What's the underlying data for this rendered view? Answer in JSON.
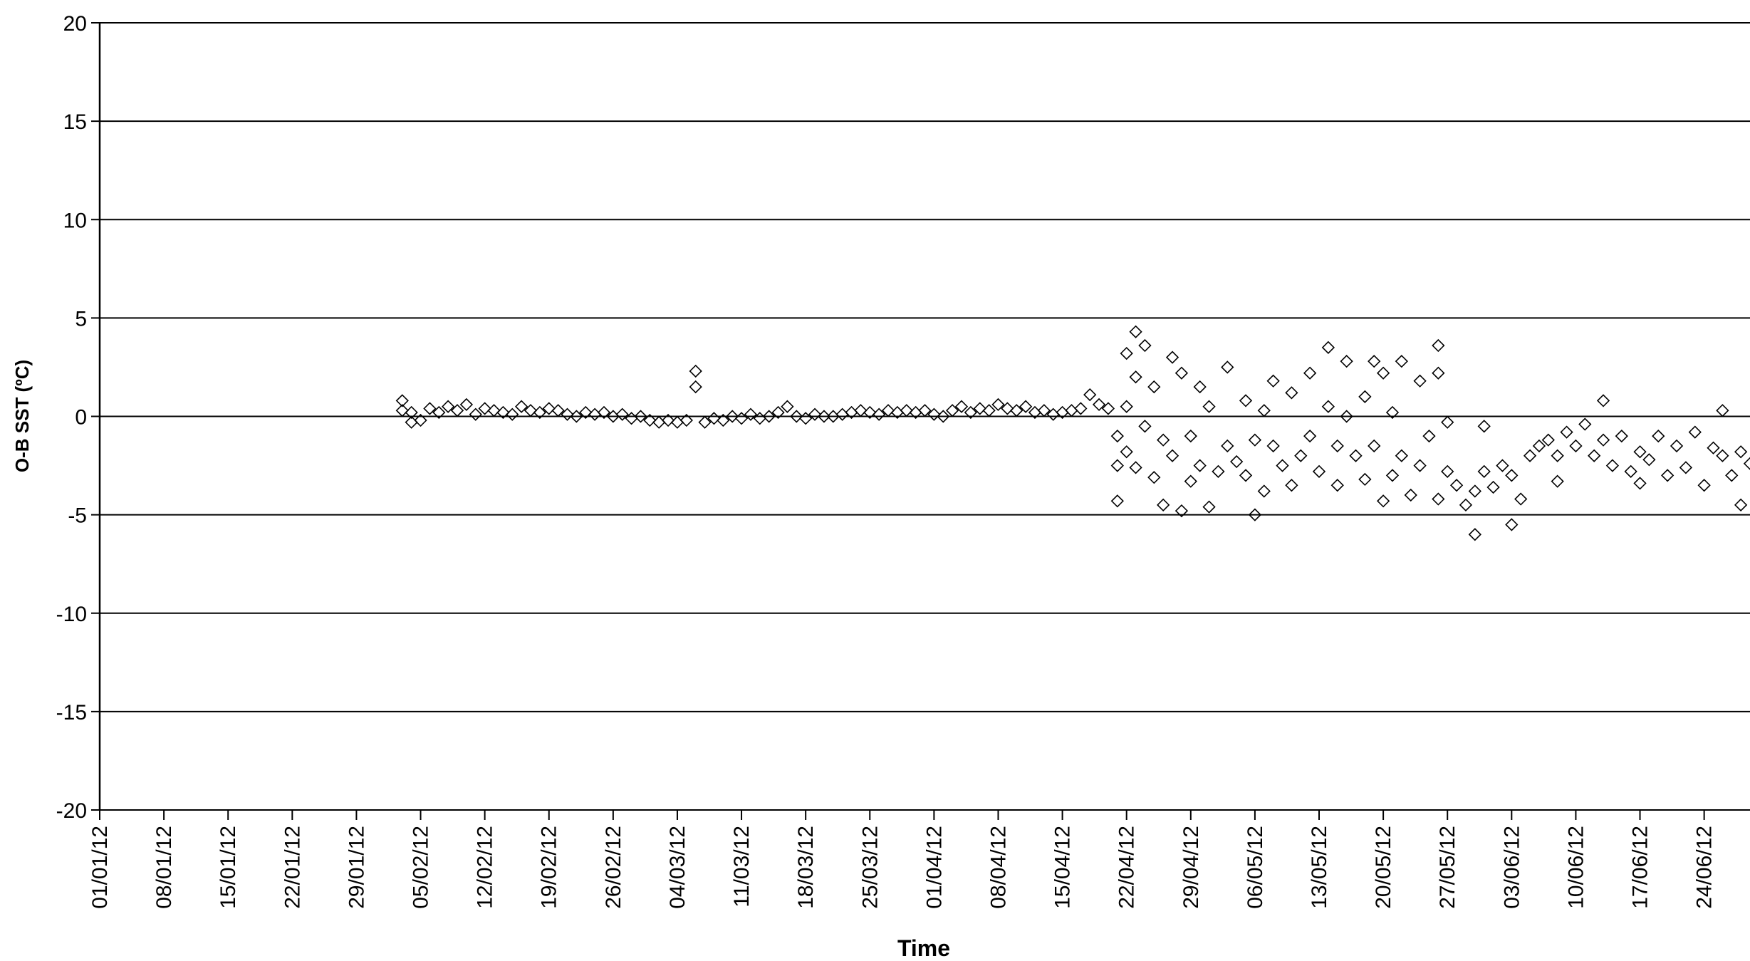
{
  "chart_data": {
    "type": "scatter",
    "title": "",
    "xlabel": "Time",
    "ylabel": "O-B SST (ºC)",
    "ylim": [
      -20,
      20
    ],
    "yticks": [
      20,
      15,
      10,
      5,
      0,
      -5,
      -10,
      -15,
      -20
    ],
    "xlim": [
      "2012-01-01",
      "2012-06-29"
    ],
    "xtick_labels": [
      "01/01/12",
      "08/01/12",
      "15/01/12",
      "22/01/12",
      "29/01/12",
      "05/02/12",
      "12/02/12",
      "19/02/12",
      "26/02/12",
      "04/03/12",
      "11/03/12",
      "18/03/12",
      "25/03/12",
      "01/04/12",
      "08/04/12",
      "15/04/12",
      "22/04/12",
      "29/04/12",
      "06/05/12",
      "13/05/12",
      "20/05/12",
      "27/05/12",
      "03/06/12",
      "10/06/12",
      "17/06/12",
      "24/06/12"
    ],
    "grid": "horizontal",
    "legend": "none",
    "marker": "diamond-open",
    "series": [
      {
        "points": [
          [
            "2012-02-03",
            0.8
          ],
          [
            "2012-02-03",
            0.3
          ],
          [
            "2012-02-04",
            -0.3
          ],
          [
            "2012-02-04",
            0.2
          ],
          [
            "2012-02-05",
            -0.2
          ],
          [
            "2012-02-06",
            0.4
          ],
          [
            "2012-02-07",
            0.2
          ],
          [
            "2012-02-08",
            0.5
          ],
          [
            "2012-02-09",
            0.3
          ],
          [
            "2012-02-10",
            0.6
          ],
          [
            "2012-02-11",
            0.1
          ],
          [
            "2012-02-12",
            0.4
          ],
          [
            "2012-02-13",
            0.3
          ],
          [
            "2012-02-14",
            0.2
          ],
          [
            "2012-02-15",
            0.1
          ],
          [
            "2012-02-16",
            0.5
          ],
          [
            "2012-02-17",
            0.3
          ],
          [
            "2012-02-18",
            0.2
          ],
          [
            "2012-02-19",
            0.4
          ],
          [
            "2012-02-20",
            0.3
          ],
          [
            "2012-02-21",
            0.1
          ],
          [
            "2012-02-22",
            0.0
          ],
          [
            "2012-02-23",
            0.2
          ],
          [
            "2012-02-24",
            0.1
          ],
          [
            "2012-02-25",
            0.2
          ],
          [
            "2012-02-26",
            0.0
          ],
          [
            "2012-02-27",
            0.1
          ],
          [
            "2012-02-28",
            -0.1
          ],
          [
            "2012-02-29",
            0.0
          ],
          [
            "2012-03-01",
            -0.2
          ],
          [
            "2012-03-02",
            -0.3
          ],
          [
            "2012-03-03",
            -0.2
          ],
          [
            "2012-03-04",
            -0.3
          ],
          [
            "2012-03-05",
            -0.2
          ],
          [
            "2012-03-06",
            2.3
          ],
          [
            "2012-03-06",
            1.5
          ],
          [
            "2012-03-07",
            -0.3
          ],
          [
            "2012-03-08",
            -0.1
          ],
          [
            "2012-03-09",
            -0.2
          ],
          [
            "2012-03-10",
            0.0
          ],
          [
            "2012-03-11",
            -0.1
          ],
          [
            "2012-03-12",
            0.1
          ],
          [
            "2012-03-13",
            -0.1
          ],
          [
            "2012-03-14",
            0.0
          ],
          [
            "2012-03-15",
            0.2
          ],
          [
            "2012-03-16",
            0.5
          ],
          [
            "2012-03-17",
            0.0
          ],
          [
            "2012-03-18",
            -0.1
          ],
          [
            "2012-03-19",
            0.1
          ],
          [
            "2012-03-20",
            0.0
          ],
          [
            "2012-03-21",
            0.0
          ],
          [
            "2012-03-22",
            0.1
          ],
          [
            "2012-03-23",
            0.2
          ],
          [
            "2012-03-24",
            0.3
          ],
          [
            "2012-03-25",
            0.2
          ],
          [
            "2012-03-26",
            0.1
          ],
          [
            "2012-03-27",
            0.3
          ],
          [
            "2012-03-28",
            0.2
          ],
          [
            "2012-03-29",
            0.3
          ],
          [
            "2012-03-30",
            0.2
          ],
          [
            "2012-03-31",
            0.3
          ],
          [
            "2012-04-01",
            0.1
          ],
          [
            "2012-04-02",
            0.0
          ],
          [
            "2012-04-03",
            0.3
          ],
          [
            "2012-04-04",
            0.5
          ],
          [
            "2012-04-05",
            0.2
          ],
          [
            "2012-04-06",
            0.4
          ],
          [
            "2012-04-07",
            0.3
          ],
          [
            "2012-04-08",
            0.6
          ],
          [
            "2012-04-09",
            0.4
          ],
          [
            "2012-04-10",
            0.3
          ],
          [
            "2012-04-11",
            0.5
          ],
          [
            "2012-04-12",
            0.2
          ],
          [
            "2012-04-13",
            0.3
          ],
          [
            "2012-04-14",
            0.1
          ],
          [
            "2012-04-15",
            0.2
          ],
          [
            "2012-04-16",
            0.3
          ],
          [
            "2012-04-17",
            0.4
          ],
          [
            "2012-04-18",
            1.1
          ],
          [
            "2012-04-19",
            0.6
          ],
          [
            "2012-04-20",
            0.4
          ],
          [
            "2012-04-21",
            -1.0
          ],
          [
            "2012-04-21",
            -2.5
          ],
          [
            "2012-04-21",
            -4.3
          ],
          [
            "2012-04-22",
            3.2
          ],
          [
            "2012-04-22",
            0.5
          ],
          [
            "2012-04-22",
            -1.8
          ],
          [
            "2012-04-23",
            4.3
          ],
          [
            "2012-04-23",
            2.0
          ],
          [
            "2012-04-23",
            -2.6
          ],
          [
            "2012-04-24",
            3.6
          ],
          [
            "2012-04-24",
            -0.5
          ],
          [
            "2012-04-25",
            1.5
          ],
          [
            "2012-04-25",
            -3.1
          ],
          [
            "2012-04-26",
            -1.2
          ],
          [
            "2012-04-26",
            -4.5
          ],
          [
            "2012-04-27",
            3.0
          ],
          [
            "2012-04-27",
            -2.0
          ],
          [
            "2012-04-28",
            2.2
          ],
          [
            "2012-04-28",
            -4.8
          ],
          [
            "2012-04-29",
            -1.0
          ],
          [
            "2012-04-29",
            -3.3
          ],
          [
            "2012-04-30",
            1.5
          ],
          [
            "2012-04-30",
            -2.5
          ],
          [
            "2012-05-01",
            0.5
          ],
          [
            "2012-05-01",
            -4.6
          ],
          [
            "2012-05-02",
            -2.8
          ],
          [
            "2012-05-03",
            2.5
          ],
          [
            "2012-05-03",
            -1.5
          ],
          [
            "2012-05-04",
            -2.3
          ],
          [
            "2012-05-05",
            0.8
          ],
          [
            "2012-05-05",
            -3.0
          ],
          [
            "2012-05-06",
            -5.0
          ],
          [
            "2012-05-06",
            -1.2
          ],
          [
            "2012-05-07",
            0.3
          ],
          [
            "2012-05-07",
            -3.8
          ],
          [
            "2012-05-08",
            1.8
          ],
          [
            "2012-05-08",
            -1.5
          ],
          [
            "2012-05-09",
            -2.5
          ],
          [
            "2012-05-10",
            1.2
          ],
          [
            "2012-05-10",
            -3.5
          ],
          [
            "2012-05-11",
            -2.0
          ],
          [
            "2012-05-12",
            2.2
          ],
          [
            "2012-05-12",
            -1.0
          ],
          [
            "2012-05-13",
            -2.8
          ],
          [
            "2012-05-14",
            3.5
          ],
          [
            "2012-05-14",
            0.5
          ],
          [
            "2012-05-15",
            -1.5
          ],
          [
            "2012-05-15",
            -3.5
          ],
          [
            "2012-05-16",
            2.8
          ],
          [
            "2012-05-16",
            0.0
          ],
          [
            "2012-05-17",
            -2.0
          ],
          [
            "2012-05-18",
            1.0
          ],
          [
            "2012-05-18",
            -3.2
          ],
          [
            "2012-05-19",
            2.8
          ],
          [
            "2012-05-19",
            -1.5
          ],
          [
            "2012-05-20",
            -4.3
          ],
          [
            "2012-05-20",
            2.2
          ],
          [
            "2012-05-21",
            0.2
          ],
          [
            "2012-05-21",
            -3.0
          ],
          [
            "2012-05-22",
            2.8
          ],
          [
            "2012-05-22",
            -2.0
          ],
          [
            "2012-05-23",
            -4.0
          ],
          [
            "2012-05-24",
            1.8
          ],
          [
            "2012-05-24",
            -2.5
          ],
          [
            "2012-05-25",
            -1.0
          ],
          [
            "2012-05-26",
            3.6
          ],
          [
            "2012-05-26",
            2.2
          ],
          [
            "2012-05-26",
            -4.2
          ],
          [
            "2012-05-27",
            -0.3
          ],
          [
            "2012-05-27",
            -2.8
          ],
          [
            "2012-05-28",
            -3.5
          ],
          [
            "2012-05-29",
            -4.5
          ],
          [
            "2012-05-30",
            -6.0
          ],
          [
            "2012-05-30",
            -3.8
          ],
          [
            "2012-05-31",
            -0.5
          ],
          [
            "2012-05-31",
            -2.8
          ],
          [
            "2012-06-01",
            -3.6
          ],
          [
            "2012-06-02",
            -2.5
          ],
          [
            "2012-06-03",
            -5.5
          ],
          [
            "2012-06-03",
            -3.0
          ],
          [
            "2012-06-04",
            -4.2
          ],
          [
            "2012-06-05",
            -2.0
          ],
          [
            "2012-06-06",
            -1.5
          ],
          [
            "2012-06-07",
            -1.2
          ],
          [
            "2012-06-08",
            -3.3
          ],
          [
            "2012-06-08",
            -2.0
          ],
          [
            "2012-06-09",
            -0.8
          ],
          [
            "2012-06-10",
            -1.5
          ],
          [
            "2012-06-11",
            -0.4
          ],
          [
            "2012-06-12",
            -2.0
          ],
          [
            "2012-06-13",
            0.8
          ],
          [
            "2012-06-13",
            -1.2
          ],
          [
            "2012-06-14",
            -2.5
          ],
          [
            "2012-06-15",
            -1.0
          ],
          [
            "2012-06-16",
            -2.8
          ],
          [
            "2012-06-17",
            -3.4
          ],
          [
            "2012-06-17",
            -1.8
          ],
          [
            "2012-06-18",
            -2.2
          ],
          [
            "2012-06-19",
            -1.0
          ],
          [
            "2012-06-20",
            -3.0
          ],
          [
            "2012-06-21",
            -1.5
          ],
          [
            "2012-06-22",
            -2.6
          ],
          [
            "2012-06-23",
            -0.8
          ],
          [
            "2012-06-24",
            -3.5
          ],
          [
            "2012-06-25",
            -1.6
          ],
          [
            "2012-06-26",
            0.3
          ],
          [
            "2012-06-26",
            -2.0
          ],
          [
            "2012-06-27",
            -3.0
          ],
          [
            "2012-06-28",
            -4.5
          ],
          [
            "2012-06-28",
            -1.8
          ],
          [
            "2012-06-29",
            -2.4
          ]
        ]
      }
    ]
  }
}
